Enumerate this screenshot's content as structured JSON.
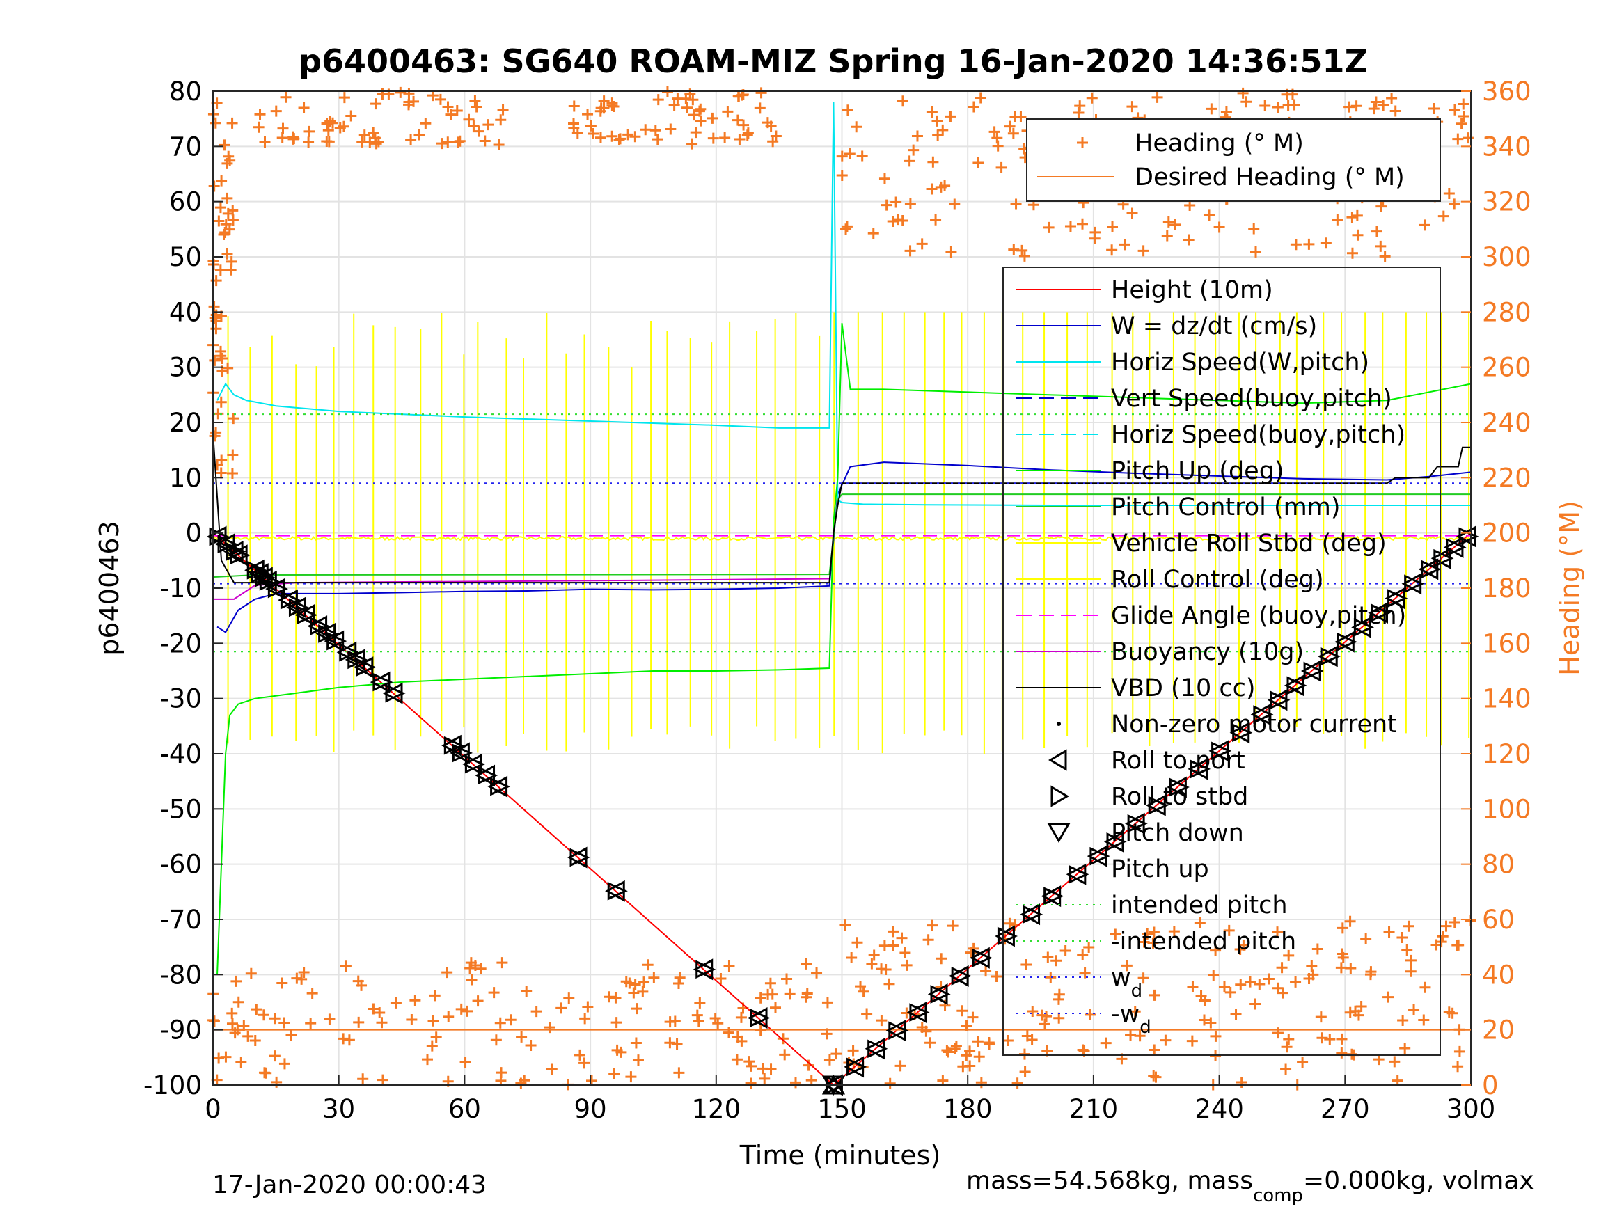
{
  "chart_data": {
    "type": "line",
    "title": "p6400463: SG640 ROAM-MIZ Spring 16-Jan-2020 14:36:51Z",
    "xlabel": "Time (minutes)",
    "ylabel": "p6400463",
    "y2label": "Heading (°M)",
    "xlim": [
      0,
      300
    ],
    "ylim": [
      -100,
      80
    ],
    "y2lim": [
      0,
      360
    ],
    "xticks": [
      "0",
      "30",
      "60",
      "90",
      "120",
      "150",
      "180",
      "210",
      "240",
      "270",
      "300"
    ],
    "yticks": [
      "80",
      "70",
      "60",
      "50",
      "40",
      "30",
      "20",
      "10",
      "0",
      "-10",
      "-20",
      "-30",
      "-40",
      "-50",
      "-60",
      "-70",
      "-80",
      "-90",
      "-100"
    ],
    "y2ticks": [
      "360",
      "340",
      "320",
      "300",
      "280",
      "260",
      "240",
      "220",
      "200",
      "180",
      "160",
      "140",
      "120",
      "100",
      "80",
      "60",
      "40",
      "20",
      "0"
    ],
    "grid": true,
    "legend_heading": [
      "Heading (° M)",
      "Desired Heading (° M)"
    ],
    "legend_main": [
      "Height (10m)",
      "W = dz/dt (cm/s)",
      "Horiz Speed(W,pitch)",
      "Vert Speed(buoy,pitch)",
      "Horiz Speed(buoy,pitch)",
      "Pitch Up (deg)",
      "Pitch Control (mm)",
      "Vehicle Roll Stbd (deg)",
      "Roll Control (deg)",
      "Glide Angle (buoy,pitch)",
      "Buoyancy (10g)",
      "VBD (10 cc)",
      "Non-zero motor current",
      "Roll to port",
      "Roll to stbd",
      "Pitch down",
      "Pitch up",
      "intended pitch",
      "-intended pitch",
      "w",
      "-w"
    ],
    "wd_subscript": "d",
    "series": [
      {
        "name": "Height (10m)",
        "color": "#ff0000",
        "x": [
          0,
          148,
          300
        ],
        "y": [
          0,
          -100,
          0
        ]
      },
      {
        "name": "W = dz/dt (cm/s)",
        "color": "#0000cc",
        "x": [
          1,
          3,
          6,
          10,
          15,
          20,
          30,
          45,
          60,
          75,
          90,
          105,
          120,
          135,
          147,
          149,
          152,
          160,
          180,
          200,
          220,
          240,
          260,
          280,
          290,
          300
        ],
        "y": [
          -17,
          -18,
          -14,
          -12,
          -11,
          -11,
          -11,
          -10.8,
          -10.6,
          -10.5,
          -10.2,
          -10.3,
          -10.2,
          -10,
          -9.6,
          7,
          12,
          12.8,
          12.2,
          11.4,
          10.8,
          10.3,
          9.8,
          9.6,
          10.2,
          11
        ]
      },
      {
        "name": "Horiz Speed(W,pitch)",
        "color": "#00e5ee",
        "x": [
          1,
          3,
          5,
          8,
          15,
          30,
          45,
          60,
          80,
          100,
          120,
          135,
          147,
          148,
          149,
          150,
          155,
          170,
          200,
          230,
          260,
          290,
          300
        ],
        "y": [
          24,
          27,
          25,
          24,
          23,
          22,
          21.5,
          21,
          20.5,
          20,
          19.5,
          19,
          19,
          78,
          6,
          5.5,
          5.2,
          5.1,
          5,
          5,
          5,
          5,
          5
        ]
      },
      {
        "name": "Pitch Up (deg)",
        "color": "#00ee00",
        "x": [
          1,
          2,
          3,
          4,
          6,
          10,
          20,
          30,
          45,
          60,
          75,
          90,
          105,
          120,
          135,
          147,
          148,
          149,
          150,
          152,
          160,
          180,
          200,
          220,
          240,
          260,
          280,
          300
        ],
        "y": [
          -80,
          -60,
          -40,
          -33,
          -31,
          -30,
          -29,
          -28,
          -27,
          -26.5,
          -26,
          -25.5,
          -25,
          -25,
          -24.8,
          -24.5,
          2,
          10,
          38,
          26,
          26,
          25.5,
          25,
          24.5,
          24,
          23.5,
          24,
          27
        ]
      },
      {
        "name": "Pitch Control (mm)",
        "color": "#22cc22",
        "x": [
          0,
          10,
          147,
          149,
          150,
          300
        ],
        "y": [
          -8,
          -7.6,
          -7.5,
          6,
          7,
          7
        ]
      },
      {
        "name": "Glide Angle (buoy,pitch)",
        "color": "#ff00ff",
        "x": [
          0,
          148,
          300
        ],
        "y": [
          -0.5,
          -0.5,
          -0.5
        ]
      },
      {
        "name": "Buoyancy (10g)",
        "color": "#cc00cc",
        "x": [
          0,
          5,
          10,
          20,
          60,
          100,
          147
        ],
        "y": [
          -12,
          -12,
          -9.5,
          -9,
          -8.8,
          -8.6,
          -8.3
        ]
      },
      {
        "name": "VBD (10 cc)",
        "color": "#000000",
        "x": [
          0,
          2,
          5,
          10,
          20,
          147,
          148,
          149,
          150,
          280,
          282,
          290,
          292,
          297,
          298,
          300
        ],
        "y": [
          18,
          -5,
          -9,
          -9,
          -9,
          -9,
          0,
          5,
          9,
          9,
          10,
          10,
          12,
          12,
          15.5,
          15.5
        ]
      },
      {
        "name": "intended pitch",
        "color": "#33dd33",
        "x": [
          0,
          300
        ],
        "y": [
          21.5,
          21.5
        ]
      },
      {
        "name": "-intended pitch",
        "color": "#33dd33",
        "x": [
          0,
          300
        ],
        "y": [
          -21.5,
          -21.5
        ]
      },
      {
        "name": "w",
        "color": "#2222ee",
        "x": [
          0,
          300
        ],
        "y": [
          9,
          9
        ]
      },
      {
        "name": "-w",
        "color": "#2222ee",
        "x": [
          0,
          300
        ],
        "y": [
          -9.2,
          -9.2
        ]
      },
      {
        "name": "Desired Heading (° M)",
        "color": "#f47a24",
        "axis": "right",
        "x": [
          0,
          300
        ],
        "y": [
          20,
          20
        ]
      }
    ],
    "markers": {
      "roll_to_port_x": [
        1,
        3,
        5,
        6,
        10,
        11,
        12,
        13,
        15,
        18,
        20,
        22,
        25,
        27,
        29,
        32,
        34,
        36,
        40,
        43,
        57,
        59,
        62,
        65,
        68,
        87,
        96,
        117,
        130,
        148,
        153,
        158,
        163,
        168,
        173,
        178,
        183,
        189,
        195,
        200,
        206,
        211,
        215,
        220,
        225,
        230,
        235,
        240,
        245,
        250,
        254,
        258,
        262,
        266,
        270,
        274,
        278,
        282,
        286,
        290,
        293,
        296,
        299
      ],
      "pitch_down_x": [
        148
      ],
      "pitch_up_x": [
        148
      ]
    },
    "heading_bands": [
      {
        "x0": 0,
        "x1": 5,
        "y0": 220,
        "y1": 360
      },
      {
        "x0": 0,
        "x1": 150,
        "y0": 0,
        "y1": 45
      },
      {
        "x0": 150,
        "x1": 300,
        "y0": 0,
        "y1": 60
      },
      {
        "x0": 150,
        "x1": 300,
        "y0": 300,
        "y1": 360
      },
      {
        "x0": 10,
        "x1": 70,
        "y0": 340,
        "y1": 360
      },
      {
        "x0": 85,
        "x1": 135,
        "y0": 340,
        "y1": 360
      }
    ],
    "footer_left": "17-Jan-2020 00:00:43",
    "footer_right_parts": [
      "mass=54.568kg, mass",
      "comp",
      "=0.000kg, volmax"
    ]
  }
}
